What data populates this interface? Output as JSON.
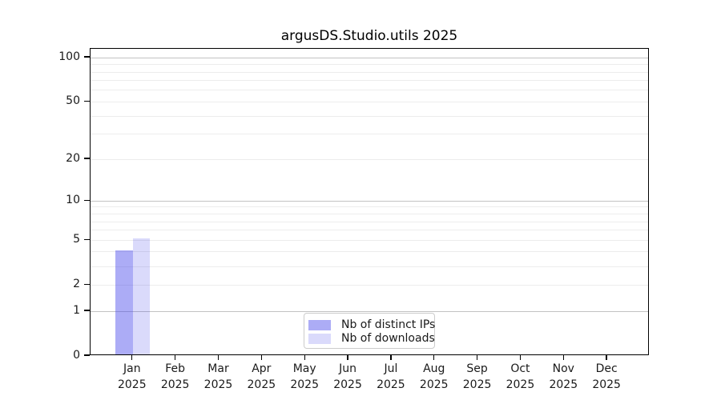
{
  "chart_data": {
    "type": "bar",
    "title": "argusDS.Studio.utils 2025",
    "categories": [
      "Jan",
      "Feb",
      "Mar",
      "Apr",
      "May",
      "Jun",
      "Jul",
      "Aug",
      "Sep",
      "Oct",
      "Nov",
      "Dec"
    ],
    "category_year_line": "2025",
    "series": [
      {
        "name": "Nb of distinct IPs",
        "values": [
          4,
          0,
          0,
          0,
          0,
          0,
          0,
          0,
          0,
          0,
          0,
          0
        ],
        "fill": "rgba(70,70,235,0.45)",
        "color_on_white": "#a9a9f2"
      },
      {
        "name": "Nb of downloads",
        "values": [
          5,
          0,
          0,
          0,
          0,
          0,
          0,
          0,
          0,
          0,
          0,
          0
        ],
        "fill": "rgba(70,70,235,0.2)",
        "color_on_white": "#dcdcf9"
      }
    ],
    "yscale": "log1p",
    "ylim": [
      0,
      115
    ],
    "y_tick_labels": [
      0,
      1,
      2,
      5,
      10,
      20,
      50,
      100
    ],
    "y_major_gridlines": [
      1,
      10,
      100
    ],
    "y_minor_gridlines": [
      2,
      3,
      4,
      5,
      6,
      7,
      8,
      9,
      20,
      30,
      40,
      50,
      60,
      70,
      80,
      90
    ],
    "grid": "horizontal",
    "legend": {
      "position": "lower center",
      "items": [
        "Nb of distinct IPs",
        "Nb of downloads"
      ]
    }
  },
  "colors": {
    "background": "#ffffff",
    "axis": "#000000",
    "text": "#1a1a1a",
    "grid_major": "#c2c2c2",
    "grid_minor": "#ececec",
    "bar_distinct_ips": "#a9a9f2",
    "bar_downloads": "#dcdcf9",
    "legend_border": "#cccccc"
  }
}
